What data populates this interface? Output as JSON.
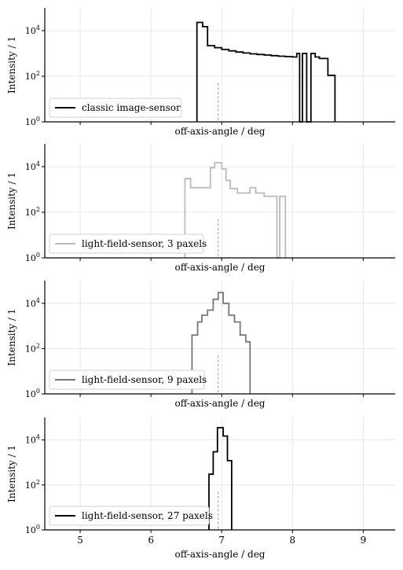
{
  "chart_data": [
    {
      "type": "line",
      "step": true,
      "xlabel": "off-axis-angle / deg",
      "ylabel": "Intensity / 1",
      "yscale": "log",
      "xlim": [
        4.5,
        9.45
      ],
      "ylim": [
        1,
        100000
      ],
      "yticks": [
        {
          "value": 1,
          "base": "10",
          "exp": "0"
        },
        {
          "value": 100,
          "base": "10",
          "exp": "2"
        },
        {
          "value": 10000,
          "base": "10",
          "exp": "4"
        }
      ],
      "xticks": [],
      "grid": true,
      "legend": "lower-left",
      "marker_x": 6.95,
      "marker_height": 50,
      "series": [
        {
          "name": "classic image-sensor",
          "color": "#000000",
          "bins": [
            [
              6.65,
              6.73,
              23000
            ],
            [
              6.73,
              6.8,
              15000
            ],
            [
              6.8,
              6.9,
              2200
            ],
            [
              6.9,
              7.0,
              1800
            ],
            [
              7.0,
              7.1,
              1500
            ],
            [
              7.1,
              7.2,
              1300
            ],
            [
              7.2,
              7.3,
              1150
            ],
            [
              7.3,
              7.4,
              1050
            ],
            [
              7.4,
              7.5,
              960
            ],
            [
              7.5,
              7.6,
              900
            ],
            [
              7.6,
              7.7,
              850
            ],
            [
              7.7,
              7.8,
              800
            ],
            [
              7.8,
              7.9,
              760
            ],
            [
              7.9,
              8.0,
              730
            ],
            [
              8.0,
              8.06,
              700
            ],
            [
              8.06,
              8.1,
              1000
            ],
            [
              8.1,
              8.14,
              1
            ],
            [
              8.14,
              8.2,
              1000
            ],
            [
              8.2,
              8.26,
              1
            ],
            [
              8.26,
              8.32,
              1000
            ],
            [
              8.32,
              8.38,
              700
            ],
            [
              8.38,
              8.5,
              600
            ],
            [
              8.5,
              8.6,
              110
            ]
          ]
        }
      ]
    },
    {
      "type": "line",
      "step": true,
      "xlabel": "off-axis-angle / deg",
      "ylabel": "Intensity / 1",
      "yscale": "log",
      "xlim": [
        4.5,
        9.45
      ],
      "ylim": [
        1,
        100000
      ],
      "yticks": [
        {
          "value": 1,
          "base": "10",
          "exp": "0"
        },
        {
          "value": 100,
          "base": "10",
          "exp": "2"
        },
        {
          "value": 10000,
          "base": "10",
          "exp": "4"
        }
      ],
      "xticks": [],
      "grid": true,
      "legend": "lower-left",
      "marker_x": 6.95,
      "marker_height": 50,
      "series": [
        {
          "name": "light-field-sensor, 3 paxels",
          "color": "#bbbbbb",
          "bins": [
            [
              6.48,
              6.56,
              3000
            ],
            [
              6.56,
              6.84,
              1200
            ],
            [
              6.84,
              6.9,
              9000
            ],
            [
              6.9,
              7.0,
              15000
            ],
            [
              7.0,
              7.06,
              8000
            ],
            [
              7.06,
              7.12,
              2500
            ],
            [
              7.12,
              7.22,
              1100
            ],
            [
              7.22,
              7.4,
              700
            ],
            [
              7.4,
              7.48,
              1200
            ],
            [
              7.48,
              7.6,
              700
            ],
            [
              7.6,
              7.78,
              500
            ],
            [
              7.78,
              7.82,
              1
            ],
            [
              7.82,
              7.86,
              500
            ],
            [
              7.86,
              7.9,
              500
            ]
          ]
        }
      ]
    },
    {
      "type": "line",
      "step": true,
      "xlabel": "off-axis-angle / deg",
      "ylabel": "Intensity / 1",
      "yscale": "log",
      "xlim": [
        4.5,
        9.45
      ],
      "ylim": [
        1,
        100000
      ],
      "yticks": [
        {
          "value": 1,
          "base": "10",
          "exp": "0"
        },
        {
          "value": 100,
          "base": "10",
          "exp": "2"
        },
        {
          "value": 10000,
          "base": "10",
          "exp": "4"
        }
      ],
      "xticks": [],
      "grid": true,
      "legend": "lower-left",
      "marker_x": 6.95,
      "marker_height": 50,
      "series": [
        {
          "name": "light-field-sensor, 9 paxels",
          "color": "#777777",
          "bins": [
            [
              6.58,
              6.66,
              400
            ],
            [
              6.66,
              6.72,
              1500
            ],
            [
              6.72,
              6.8,
              3000
            ],
            [
              6.8,
              6.88,
              5000
            ],
            [
              6.88,
              6.95,
              15000
            ],
            [
              6.95,
              7.02,
              30000
            ],
            [
              7.02,
              7.1,
              10000
            ],
            [
              7.1,
              7.18,
              3000
            ],
            [
              7.18,
              7.26,
              1500
            ],
            [
              7.26,
              7.34,
              400
            ],
            [
              7.34,
              7.4,
              200
            ]
          ]
        }
      ]
    },
    {
      "type": "line",
      "step": true,
      "xlabel": "off-axis-angle / deg",
      "ylabel": "Intensity / 1",
      "yscale": "log",
      "xlim": [
        4.5,
        9.45
      ],
      "ylim": [
        1,
        100000
      ],
      "yticks": [
        {
          "value": 1,
          "base": "10",
          "exp": "0"
        },
        {
          "value": 100,
          "base": "10",
          "exp": "2"
        },
        {
          "value": 10000,
          "base": "10",
          "exp": "4"
        }
      ],
      "xticks": [
        5,
        6,
        7,
        8,
        9
      ],
      "grid": true,
      "legend": "lower-left",
      "marker_x": 6.95,
      "marker_height": 50,
      "series": [
        {
          "name": "light-field-sensor, 27 paxels",
          "color": "#000000",
          "bins": [
            [
              6.82,
              6.88,
              300
            ],
            [
              6.88,
              6.94,
              3000
            ],
            [
              6.94,
              7.02,
              35000
            ],
            [
              7.02,
              7.08,
              15000
            ],
            [
              7.08,
              7.14,
              1200
            ]
          ]
        }
      ]
    }
  ]
}
